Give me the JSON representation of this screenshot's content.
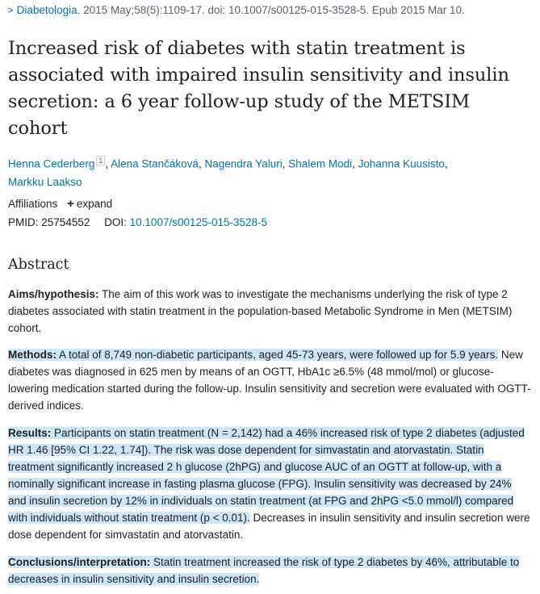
{
  "citation": {
    "journal": "Diabetologia.",
    "details": " 2015 May;58(5):1109-17. doi: 10.1007/s00125-015-3528-5. Epub 2015 Mar 10."
  },
  "title": "Increased risk of diabetes with statin treatment is associated with impaired insulin sensitivity and insulin secretion: a 6 year follow-up study of the METSIM cohort",
  "authors": [
    {
      "name": "Henna Cederberg",
      "sup": "1"
    },
    {
      "name": "Alena Stančáková"
    },
    {
      "name": "Nagendra Yaluri"
    },
    {
      "name": "Shalem Modi"
    },
    {
      "name": "Johanna Kuusisto"
    },
    {
      "name": "Markku Laakso"
    }
  ],
  "affiliations": {
    "label": "Affiliations",
    "expand_label": "expand"
  },
  "ids": {
    "pmid_label": "PMID:",
    "pmid": "25754552",
    "doi_label": "DOI:",
    "doi": "10.1007/s00125-015-3528-5"
  },
  "abstract": {
    "heading": "Abstract",
    "aims": {
      "label": "Aims/hypothesis:",
      "text": "The aim of this work was to investigate the mechanisms underlying the risk of type 2 diabetes associated with statin treatment in the population-based Metabolic Syndrome in Men (METSIM) cohort."
    },
    "methods": {
      "label": "Methods:",
      "text_highlighted": "A total of 8,749 non-diabetic participants, aged 45-73 years, were followed up for 5.9 years.",
      "text_rest": "New diabetes was diagnosed in 625 men by means of an OGTT, HbA1c ≥6.5% (48 mmol/mol) or glucose-lowering medication started during the follow-up. Insulin sensitivity and secretion were evaluated with OGTT-derived indices."
    },
    "results": {
      "label": "Results:",
      "text_highlighted_1": "Participants on statin treatment (N = 2,142) had a 46% increased risk of type 2 diabetes (adjusted HR 1.46 [95% CI 1.22, 1.74]). The risk was dose dependent for simvastatin and atorvastatin. Statin treatment significantly increased 2 h glucose (2hPG) and glucose AUC of an OGTT at follow-up, with a nominally significant increase in fasting plasma glucose (FPG).",
      "text_highlighted_2": "Insulin sensitivity was decreased by 24% and insulin secretion by 12% in individuals on statin treatment (at FPG and 2hPG <5.0 mmol/l) compared with individuals without statin treatment (p < 0.01).",
      "text_rest": "Decreases in insulin sensitivity and insulin secretion were dose dependent for simvastatin and atorvastatin."
    },
    "conclusions": {
      "label": "Conclusions/interpretation:",
      "text": "Statin treatment increased the risk of type 2 diabetes by 46%, attributable to decreases in insulin sensitivity and insulin secretion."
    }
  }
}
